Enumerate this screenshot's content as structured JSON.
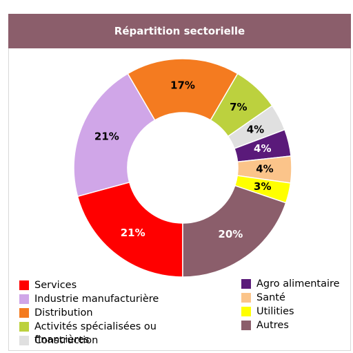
{
  "chart_data": {
    "type": "donut",
    "title": "Répartition sectorielle",
    "categories": [
      "Services",
      "Industrie manufacturière",
      "Distribution",
      "Activités spécialisées ou financières",
      "Construction",
      "Agro alimentaire",
      "Santé",
      "Utilities",
      "Autres"
    ],
    "values": [
      21,
      21,
      17,
      7,
      4,
      4,
      4,
      3,
      20
    ],
    "value_labels": [
      "21%",
      "21%",
      "17%",
      "7%",
      "4%",
      "4%",
      "4%",
      "3%",
      "20%"
    ],
    "colors": [
      "#ff0000",
      "#d0a6e8",
      "#f47b20",
      "#bcd13e",
      "#e0e0e0",
      "#5a1a7a",
      "#fbc48a",
      "#ffff00",
      "#8b5e6b"
    ],
    "legend_columns": 2
  }
}
